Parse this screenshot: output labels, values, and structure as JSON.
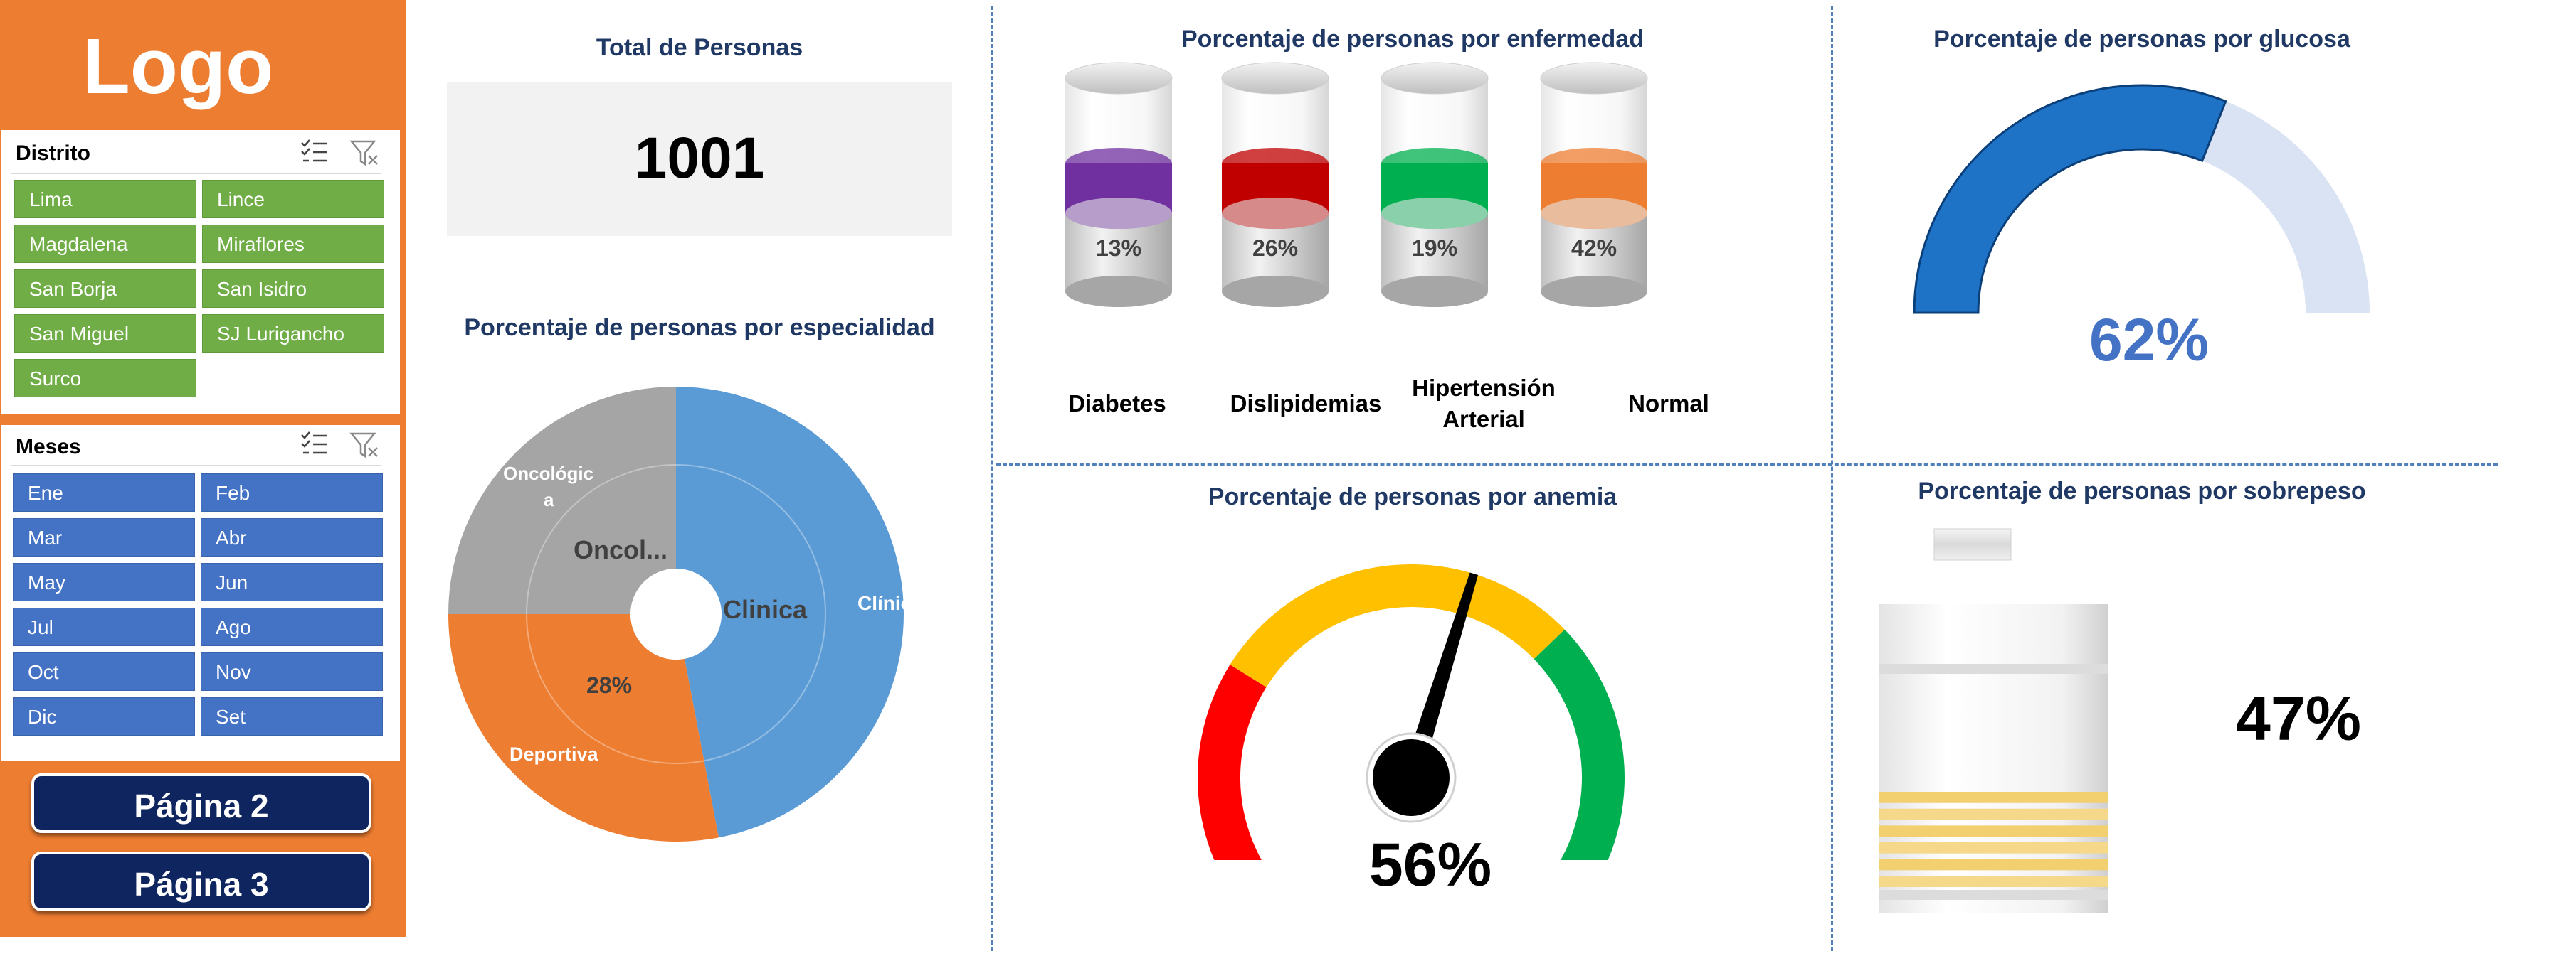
{
  "sidebar": {
    "logo": "Logo",
    "district_slicer": {
      "title": "Distrito",
      "items": [
        "Lima",
        "Lince",
        "Magdalena",
        "Miraflores",
        "San Borja",
        "San Isidro",
        "San Miguel",
        "SJ Lurigancho",
        "Surco"
      ]
    },
    "months_slicer": {
      "title": "Meses",
      "items": [
        "Ene",
        "Feb",
        "Mar",
        "Abr",
        "May",
        "Jun",
        "Jul",
        "Ago",
        "Oct",
        "Nov",
        "Dic",
        "Set"
      ]
    },
    "buttons": [
      "Página 2",
      "Página 3"
    ]
  },
  "total": {
    "title": "Total de Personas",
    "value": "1001"
  },
  "specialty": {
    "title": "Porcentaje de personas por especialidad",
    "labels": {
      "outer_clinica": "Clínica",
      "outer_oncologica_line1": "Oncológic",
      "outer_oncologica_line2": "a",
      "outer_deportiva": "Deportiva",
      "inner_oncol": "Oncol...",
      "inner_clinica": "Clinica",
      "inner_pct": "28%"
    }
  },
  "disease": {
    "title": "Porcentaje de personas por enfermedad",
    "items": [
      {
        "label_line1": "Diabetes",
        "label_line2": "",
        "pct": "13%",
        "value": 13,
        "color": "#7030a0"
      },
      {
        "label_line1": "Dislipidemias",
        "label_line2": "",
        "pct": "26%",
        "value": 26,
        "color": "#c00000"
      },
      {
        "label_line1": "Hipertensión",
        "label_line2": "Arterial",
        "pct": "19%",
        "value": 19,
        "color": "#00b050"
      },
      {
        "label_line1": "Normal",
        "label_line2": "",
        "pct": "42%",
        "value": 42,
        "color": "#ed7d31"
      }
    ]
  },
  "glucose": {
    "title": "Porcentaje de personas por glucosa",
    "pct": "62%",
    "value": 62,
    "color_fill": "#1f73c6",
    "color_track": "#dae3f3"
  },
  "anemia": {
    "title": "Porcentaje de personas por anemia",
    "pct": "56%",
    "value": 56,
    "band_colors": [
      "#ff0000",
      "#ffc000",
      "#00b050"
    ]
  },
  "overweight": {
    "title": "Porcentaje de personas por sobrepeso",
    "pct": "47%",
    "value": 47
  },
  "chart_data": [
    {
      "type": "pie",
      "title": "Porcentaje de personas por especialidad",
      "categories": [
        "Clínica",
        "Deportiva",
        "Oncológica"
      ],
      "values": [
        47,
        28,
        25
      ]
    },
    {
      "type": "bar",
      "title": "Porcentaje de personas por enfermedad",
      "categories": [
        "Diabetes",
        "Dislipidemias",
        "Hipertensión Arterial",
        "Normal"
      ],
      "values": [
        13,
        26,
        19,
        42
      ]
    }
  ]
}
